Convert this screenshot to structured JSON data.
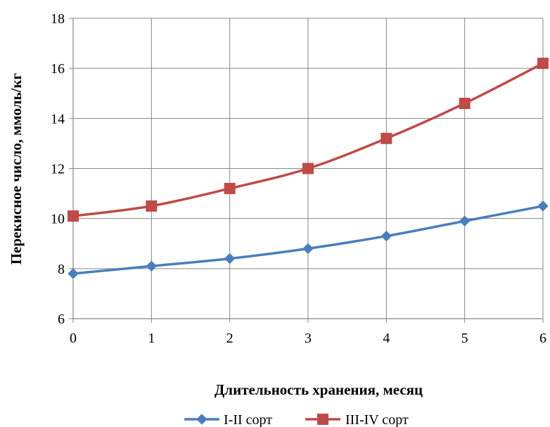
{
  "chart_data": {
    "type": "line",
    "xlabel": "Длительность хранения, месяц",
    "ylabel": "Перекисное число, ммоль/кг",
    "x": [
      0,
      1,
      2,
      3,
      4,
      5,
      6
    ],
    "xlim": [
      0,
      6
    ],
    "ylim": [
      6,
      18
    ],
    "x_ticks": [
      "0",
      "1",
      "2",
      "3",
      "4",
      "5",
      "6"
    ],
    "y_ticks": [
      "6",
      "8",
      "10",
      "12",
      "14",
      "16",
      "18"
    ],
    "grid": true,
    "legend_position": "bottom",
    "series": [
      {
        "name": "I-II сорт",
        "values": [
          7.8,
          8.1,
          8.4,
          8.8,
          9.3,
          9.9,
          10.5
        ],
        "color": "#4a7ebb",
        "marker": "diamond"
      },
      {
        "name": "III-IV сорт",
        "values": [
          10.1,
          10.5,
          11.2,
          12.0,
          13.2,
          14.6,
          16.2
        ],
        "color": "#be4b48",
        "marker": "square"
      }
    ]
  }
}
